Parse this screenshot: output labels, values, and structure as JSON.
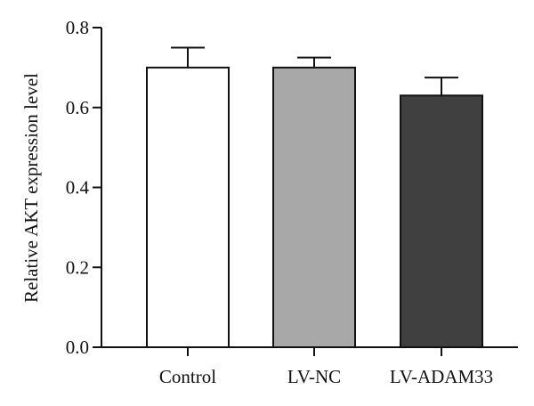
{
  "chart_data": {
    "type": "bar",
    "title": "",
    "xlabel": "",
    "ylabel": "Relative AKT expression level",
    "categories": [
      "Control",
      "LV-NC",
      "LV-ADAM33"
    ],
    "values": [
      0.7,
      0.7,
      0.63
    ],
    "errors": [
      0.05,
      0.025,
      0.045
    ],
    "bar_colors": [
      "#ffffff",
      "#a8a8a8",
      "#404040"
    ],
    "ylim": [
      0,
      0.8
    ],
    "yticks": [
      0.0,
      0.2,
      0.4,
      0.6,
      0.8
    ],
    "ytick_labels": [
      "0.0",
      "0.2",
      "0.4",
      "0.6",
      "0.8"
    ],
    "grid": false,
    "legend": "none"
  }
}
